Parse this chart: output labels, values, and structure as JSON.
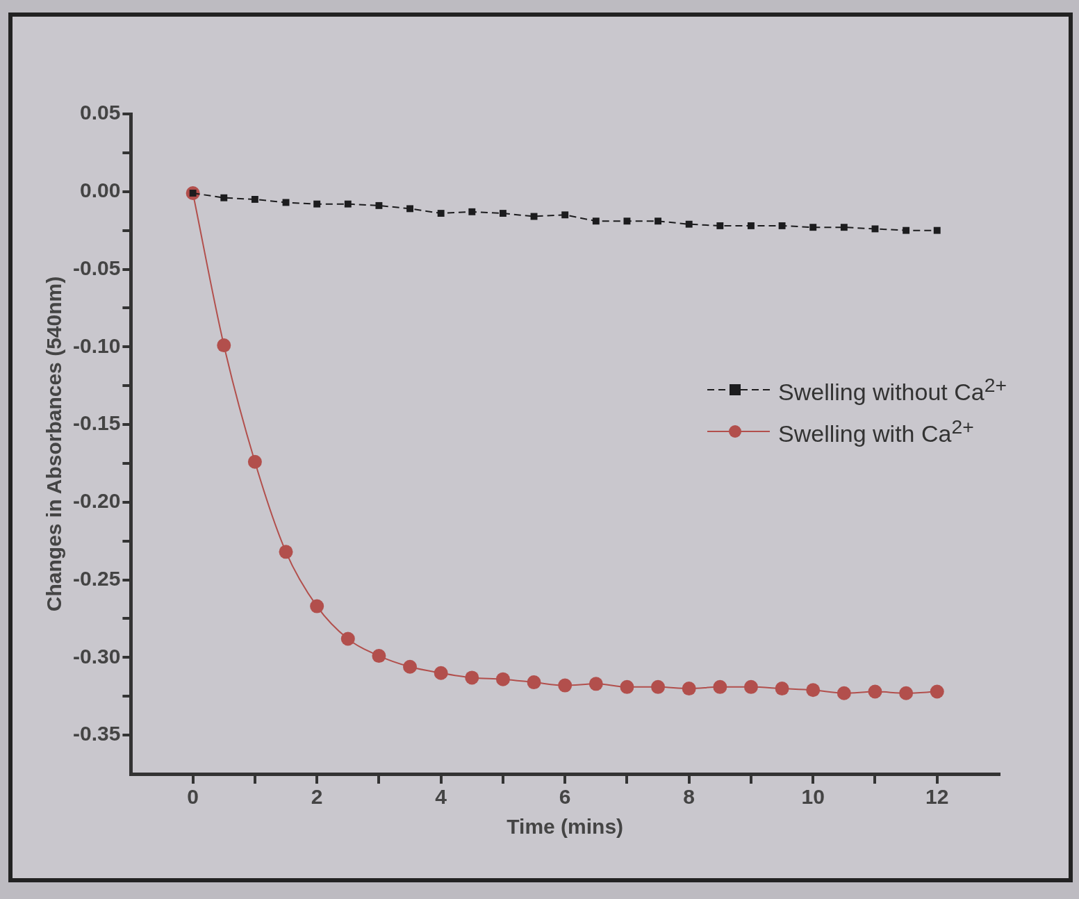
{
  "chart_data": {
    "type": "line",
    "xlabel": "Time (mins)",
    "ylabel": "Changes in Absorbances (540nm)",
    "x": [
      0,
      0.5,
      1,
      1.5,
      2,
      2.5,
      3,
      3.5,
      4,
      4.5,
      5,
      5.5,
      6,
      6.5,
      7,
      7.5,
      8,
      8.5,
      9,
      9.5,
      10,
      10.5,
      11,
      11.5,
      12
    ],
    "series": [
      {
        "name": "Swelling without Ca$^{2+}$",
        "color": "#1c1c1e",
        "marker": "square",
        "line_style": "dashed",
        "values": [
          -0.001,
          -0.004,
          -0.005,
          -0.007,
          -0.008,
          -0.008,
          -0.009,
          -0.011,
          -0.014,
          -0.013,
          -0.014,
          -0.016,
          -0.015,
          -0.019,
          -0.019,
          -0.019,
          -0.021,
          -0.022,
          -0.022,
          -0.022,
          -0.023,
          -0.023,
          -0.024,
          -0.025,
          -0.025
        ]
      },
      {
        "name": "Swelling with Ca$^{2+}$",
        "color": "#b24f4c",
        "marker": "circle",
        "line_style": "solid",
        "values": [
          -0.001,
          -0.099,
          -0.174,
          -0.232,
          -0.267,
          -0.288,
          -0.299,
          -0.306,
          -0.31,
          -0.313,
          -0.314,
          -0.316,
          -0.318,
          -0.317,
          -0.319,
          -0.319,
          -0.32,
          -0.319,
          -0.319,
          -0.32,
          -0.321,
          -0.323,
          -0.322,
          -0.323,
          -0.322
        ]
      }
    ],
    "xlim": [
      -1,
      13
    ],
    "xticks": [
      0,
      {
        "value": 1,
        "label": null
      },
      2,
      {
        "value": 3,
        "label": null
      },
      4,
      {
        "value": 5,
        "label": null
      },
      6,
      {
        "value": 7,
        "label": null
      },
      8,
      {
        "value": 9,
        "label": null
      },
      10,
      {
        "value": 11,
        "label": null
      },
      12
    ],
    "ylim": [
      -0.375,
      0.05
    ],
    "yticks": [
      {
        "value": -0.35,
        "label": "-0.35"
      },
      {
        "value": -0.325,
        "label": null
      },
      {
        "value": -0.3,
        "label": "-0.30"
      },
      {
        "value": -0.275,
        "label": null
      },
      {
        "value": -0.25,
        "label": "-0.25"
      },
      {
        "value": -0.225,
        "label": null
      },
      {
        "value": -0.2,
        "label": "-0.20"
      },
      {
        "value": -0.175,
        "label": null
      },
      {
        "value": -0.15,
        "label": "-0.15"
      },
      {
        "value": -0.125,
        "label": null
      },
      {
        "value": -0.1,
        "label": "-0.10"
      },
      {
        "value": -0.075,
        "label": null
      },
      {
        "value": -0.05,
        "label": "-0.05"
      },
      {
        "value": -0.025,
        "label": null
      },
      {
        "value": 0,
        "label": "0.00"
      },
      {
        "value": 0.025,
        "label": null
      },
      {
        "value": 0.05,
        "label": "0.05"
      }
    ],
    "grid": false,
    "legend": "right"
  }
}
